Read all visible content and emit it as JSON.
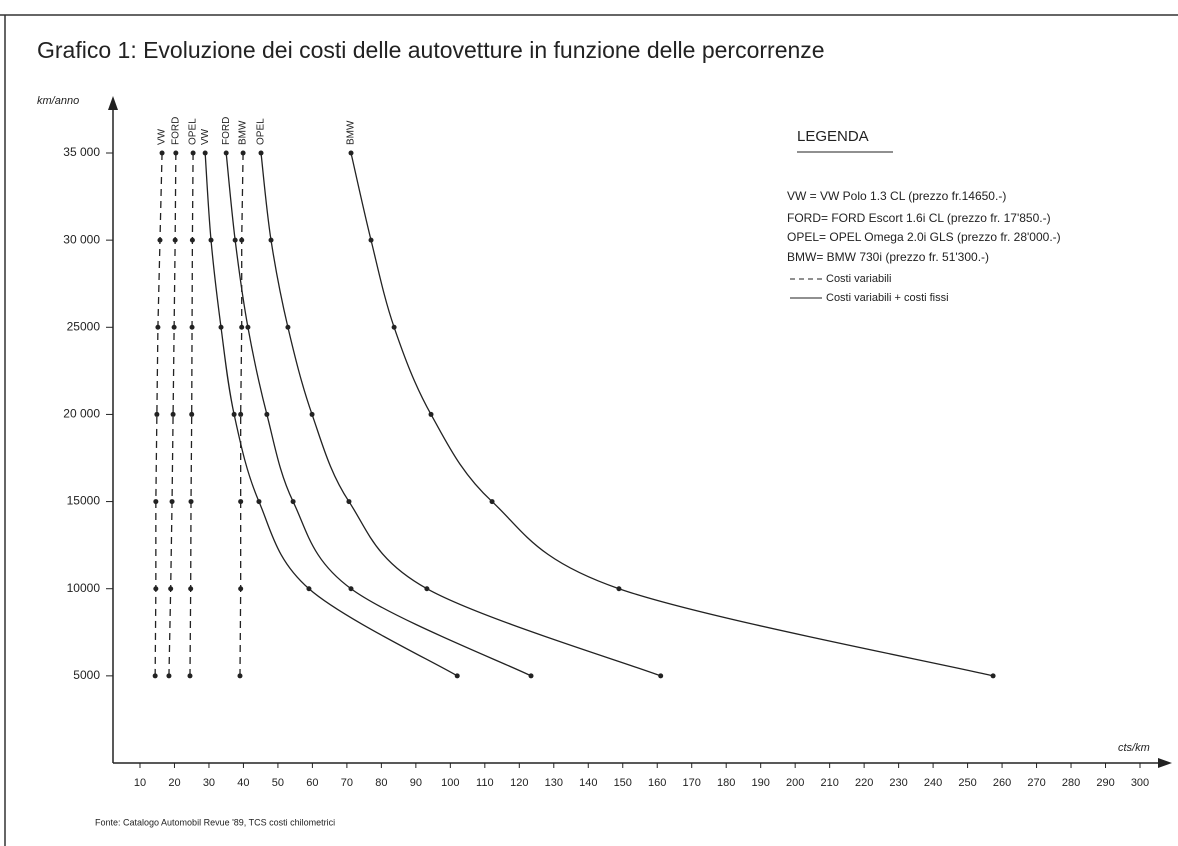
{
  "chart_data": {
    "type": "line",
    "title": "Grafico 1: Evoluzione dei costi delle autovetture in funzione delle percorrenze",
    "ylabel": "km/anno",
    "xlabel": "cts/km",
    "source": "Fonte: Catalogo Automobil Revue '89, TCS costi chilometrici",
    "xlim": [
      0,
      300
    ],
    "ylim": [
      0,
      35000
    ],
    "xticks": [
      10,
      20,
      30,
      40,
      50,
      60,
      70,
      80,
      90,
      100,
      110,
      120,
      130,
      140,
      150,
      160,
      170,
      180,
      190,
      200,
      210,
      220,
      230,
      240,
      250,
      260,
      270,
      280,
      290,
      300
    ],
    "yticks": [
      {
        "value": 5000,
        "label": "5000"
      },
      {
        "value": 10000,
        "label": "10000"
      },
      {
        "value": 15000,
        "label": "15000"
      },
      {
        "value": 20000,
        "label": "20 000"
      },
      {
        "value": 25000,
        "label": "25000"
      },
      {
        "value": 30000,
        "label": "30 000"
      },
      {
        "value": 35000,
        "label": "35 000"
      }
    ],
    "y": [
      35000,
      30000,
      25000,
      20000,
      15000,
      10000,
      5000
    ],
    "series": [
      {
        "name": "VW",
        "style": "dashed",
        "color": "#222",
        "x": [
          16.4,
          15.8,
          15.2,
          14.9,
          14.6,
          14.6,
          14.4
        ]
      },
      {
        "name": "FORD",
        "style": "dashed",
        "color": "#222",
        "x": [
          20.4,
          20.2,
          19.9,
          19.6,
          19.3,
          18.9,
          18.4
        ]
      },
      {
        "name": "OPEL",
        "style": "dashed",
        "color": "#222",
        "x": [
          25.4,
          25.2,
          25.1,
          25.0,
          24.8,
          24.7,
          24.5
        ]
      },
      {
        "name": "VW",
        "style": "solid",
        "color": "#222",
        "x": [
          28.9,
          30.6,
          33.5,
          37.3,
          44.5,
          59.0,
          102
        ]
      },
      {
        "name": "FORD",
        "style": "solid",
        "color": "#222",
        "x": [
          35.0,
          37.6,
          41.3,
          46.8,
          54.4,
          71.2,
          123.4
        ]
      },
      {
        "name": "BMW",
        "style": "dashed",
        "color": "#222",
        "x": [
          39.9,
          39.5,
          39.5,
          39.2,
          39.2,
          39.2,
          39.0
        ]
      },
      {
        "name": "OPEL",
        "style": "solid",
        "color": "#222",
        "x": [
          45.1,
          48.0,
          52.9,
          59.9,
          70.6,
          93.2,
          161
        ]
      },
      {
        "name": "BMW",
        "style": "solid",
        "color": "#222",
        "x": [
          71.2,
          77.0,
          83.7,
          94.4,
          112.1,
          148.9,
          257.4
        ]
      }
    ],
    "legend": {
      "title": "LEGENDA",
      "entries": [
        "VW =  VW Polo 1.3 CL (prezzo  fr.14650.-)",
        "FORD= FORD Escort 1.6i CL (prezzo fr. 17'850.-)",
        "OPEL= OPEL Omega 2.0i GLS (prezzo fr. 28'000.-)",
        "BMW= BMW 730i (prezzo fr. 51'300.-)",
        "Costi variabili",
        "Costi variabili + costi fissi"
      ]
    }
  }
}
